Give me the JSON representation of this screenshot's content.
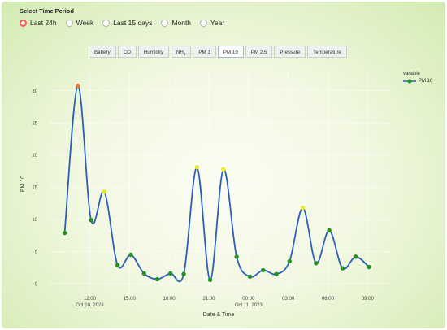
{
  "header": {
    "title": "Select Time Period"
  },
  "period_options": [
    {
      "label": "Last 24h",
      "selected": true
    },
    {
      "label": "Week",
      "selected": false
    },
    {
      "label": "Last 15 days",
      "selected": false
    },
    {
      "label": "Month",
      "selected": false
    },
    {
      "label": "Year",
      "selected": false
    }
  ],
  "tabs": [
    "Battery",
    "CO",
    "Humidity",
    "NH3",
    "PM 1",
    "PM 10",
    "PM 2.5",
    "Pressure",
    "Temperature"
  ],
  "active_tab": "PM 10",
  "legend": {
    "title": "variable",
    "series_name": "PM 10"
  },
  "colors": {
    "line": "#2c5fb8",
    "point_green": "#23921f",
    "point_orange": "#f07b27",
    "point_yellow": "#e8e82c",
    "radio_selected": "#ff5a54"
  },
  "chart_data": {
    "type": "line",
    "xlabel": "Date & Time",
    "ylabel": "PM 10",
    "ylim": [
      -1,
      33
    ],
    "yticks": [
      0,
      5,
      10,
      15,
      20,
      25,
      30
    ],
    "xticks": [
      {
        "label": "12:00",
        "sub": "Oct 10, 2023",
        "hour": 12
      },
      {
        "label": "15:00",
        "sub": "",
        "hour": 15
      },
      {
        "label": "18:00",
        "sub": "",
        "hour": 18
      },
      {
        "label": "21:00",
        "sub": "",
        "hour": 21
      },
      {
        "label": "00:00",
        "sub": "Oct 11, 2023",
        "hour": 24
      },
      {
        "label": "03:00",
        "sub": "",
        "hour": 27
      },
      {
        "label": "06:00",
        "sub": "",
        "hour": 30
      },
      {
        "label": "09:00",
        "sub": "",
        "hour": 33
      }
    ],
    "series": [
      {
        "name": "PM 10",
        "points": [
          {
            "x": 10.1,
            "y": 7.9,
            "c": "green"
          },
          {
            "x": 11.1,
            "y": 30.8,
            "c": "orange"
          },
          {
            "x": 12.1,
            "y": 9.9,
            "c": "green"
          },
          {
            "x": 13.1,
            "y": 14.3,
            "c": "yellow"
          },
          {
            "x": 14.1,
            "y": 2.9,
            "c": "green"
          },
          {
            "x": 15.1,
            "y": 4.5,
            "c": "green"
          },
          {
            "x": 16.1,
            "y": 1.6,
            "c": "green"
          },
          {
            "x": 17.1,
            "y": 0.7,
            "c": "green"
          },
          {
            "x": 18.1,
            "y": 1.6,
            "c": "green"
          },
          {
            "x": 19.1,
            "y": 1.5,
            "c": "green"
          },
          {
            "x": 20.1,
            "y": 18.1,
            "c": "yellow"
          },
          {
            "x": 21.1,
            "y": 0.6,
            "c": "green"
          },
          {
            "x": 22.1,
            "y": 17.8,
            "c": "yellow"
          },
          {
            "x": 23.1,
            "y": 4.2,
            "c": "green"
          },
          {
            "x": 24.1,
            "y": 1.1,
            "c": "green"
          },
          {
            "x": 25.1,
            "y": 2.1,
            "c": "green"
          },
          {
            "x": 26.1,
            "y": 1.5,
            "c": "green"
          },
          {
            "x": 27.1,
            "y": 3.5,
            "c": "green"
          },
          {
            "x": 28.1,
            "y": 11.8,
            "c": "yellow"
          },
          {
            "x": 29.1,
            "y": 3.2,
            "c": "green"
          },
          {
            "x": 30.1,
            "y": 8.3,
            "c": "green"
          },
          {
            "x": 31.1,
            "y": 2.4,
            "c": "green"
          },
          {
            "x": 32.1,
            "y": 4.2,
            "c": "green"
          },
          {
            "x": 33.1,
            "y": 2.6,
            "c": "green"
          }
        ]
      }
    ],
    "grid": true,
    "legend_position": "top-right"
  }
}
